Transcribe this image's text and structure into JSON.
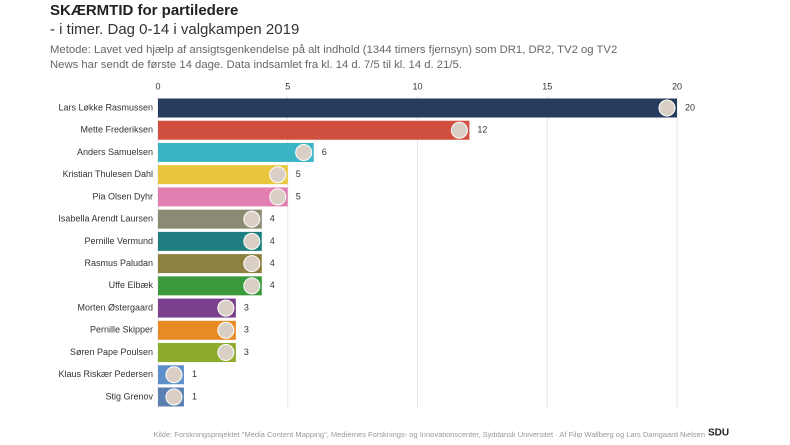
{
  "chart_data": {
    "type": "bar",
    "orientation": "horizontal",
    "title": "SKÆRMTID for partiledere",
    "subtitle": "- i timer. Dag 0-14 i valgkampen 2019",
    "note": "Metode: Lavet ved hjælp af ansigtsgenkendelse på alt indhold (1344 timers fjernsyn) som DR1, DR2, TV2 og TV2 News har sendt de første 14 dage. Data indsamlet fra kl. 14 d. 7/5 til kl. 14 d. 21/5.",
    "source": "Kilde: Forskningsprojektet \"Media Content Mapping\", Mediernes Forsknings- og Innovationscenter, Syddansk Universitet · Af Filip Wallberg og Lars Damgaard Nielsen",
    "logo": "SDU",
    "categories": [
      "Lars Løkke Rasmussen",
      "Mette Frederiksen",
      "Anders Samuelsen",
      "Kristian Thulesen Dahl",
      "Pia Olsen Dyhr",
      "Isabella Arendt Laursen",
      "Pernille Vermund",
      "Rasmus Paludan",
      "Uffe Elbæk",
      "Morten Østergaard",
      "Pernille Skipper",
      "Søren Pape Poulsen",
      "Klaus Riskær Pedersen",
      "Stig Grenov"
    ],
    "values": [
      20,
      12,
      6,
      5,
      5,
      4,
      4,
      4,
      4,
      3,
      3,
      3,
      1,
      1
    ],
    "colors": [
      "#263b5e",
      "#d04f3e",
      "#3bb5c5",
      "#e8c53c",
      "#e17fb1",
      "#8b8a72",
      "#1f7e80",
      "#8d8040",
      "#3b9b3c",
      "#7a3f8d",
      "#e98b24",
      "#8cab2b",
      "#5e8fc8",
      "#5b80b1"
    ],
    "xlim": [
      0,
      20
    ],
    "xticks": [
      0,
      5,
      10,
      15,
      20
    ],
    "grid": true
  }
}
